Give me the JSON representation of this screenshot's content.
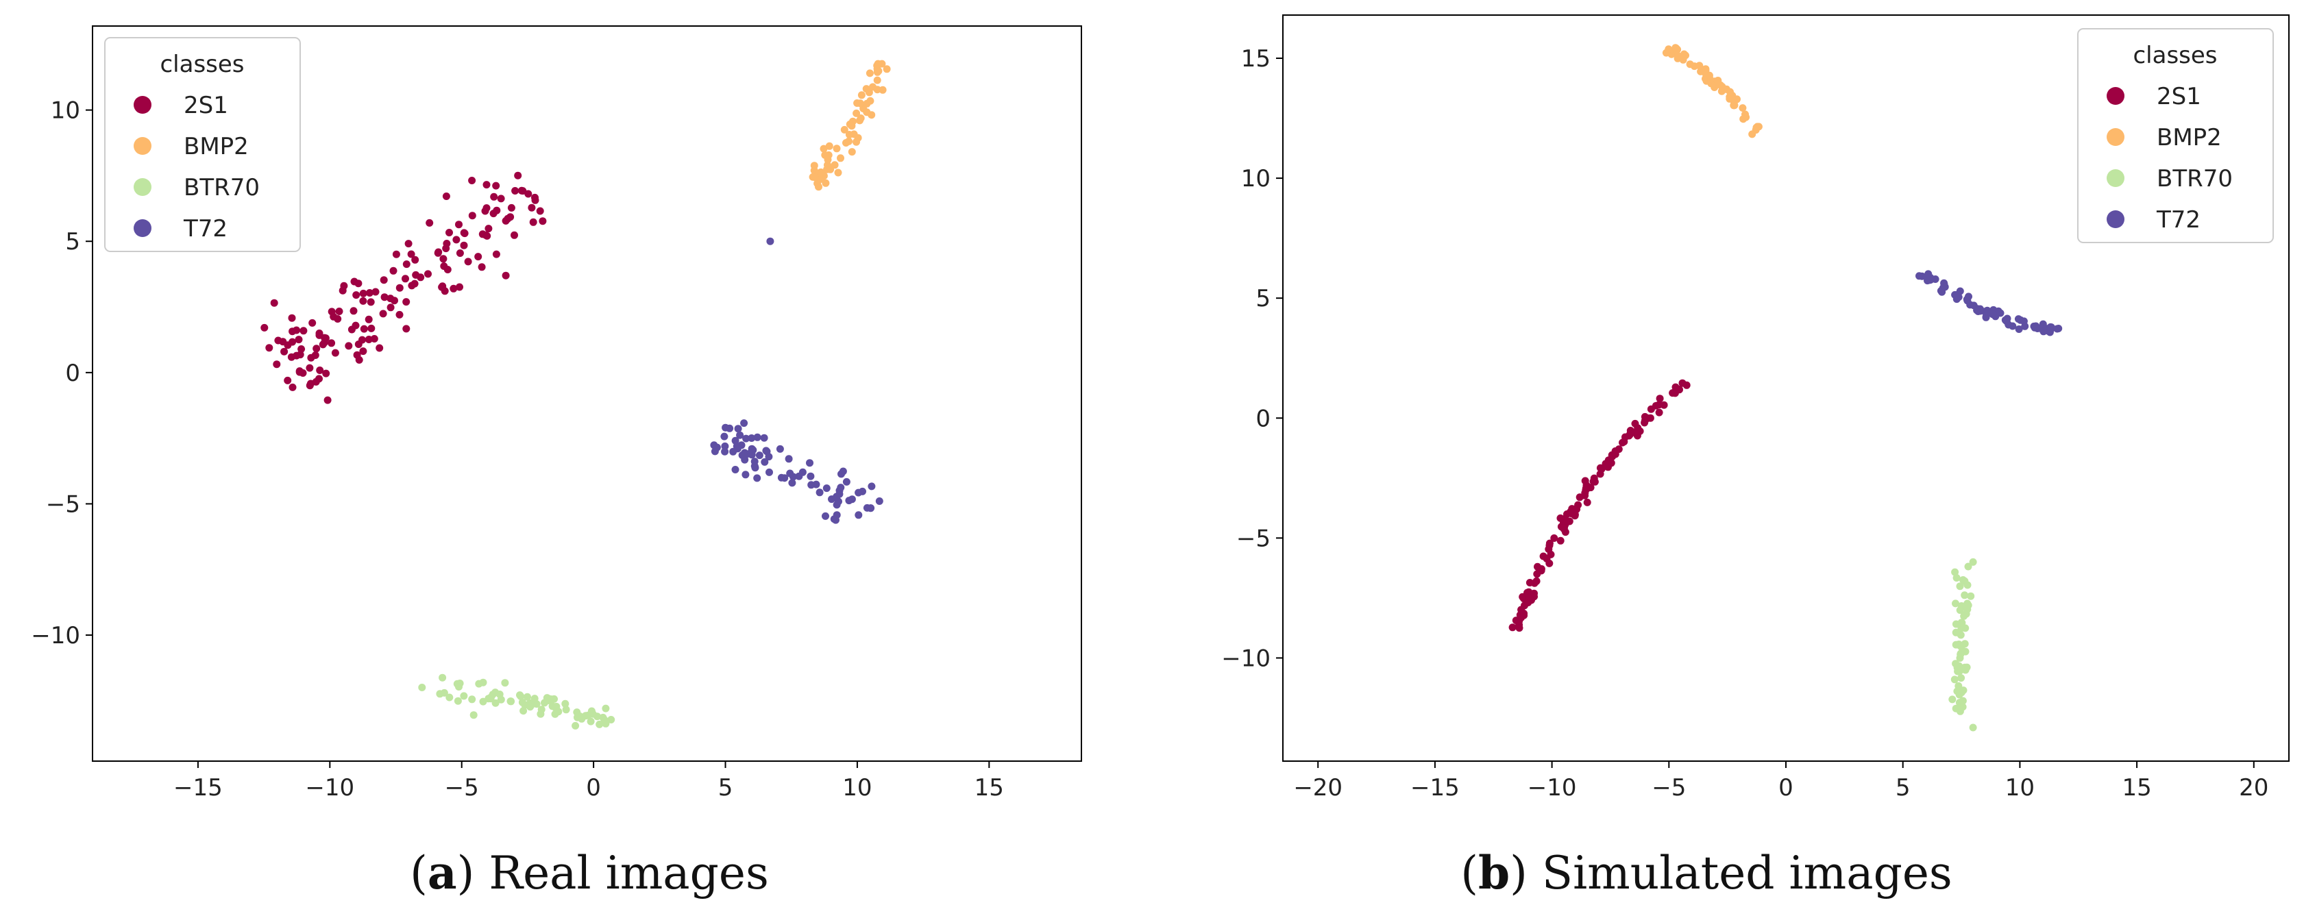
{
  "chart_data": [
    {
      "type": "scatter",
      "panel_letter": "a",
      "caption": "Real images",
      "xlim": [
        -19,
        18.5
      ],
      "ylim": [
        -14.8,
        13.2
      ],
      "xticks": [
        -15,
        -10,
        -5,
        0,
        5,
        10,
        15
      ],
      "yticks": [
        -10,
        -5,
        0,
        5,
        10
      ],
      "xtick_labels": [
        "−15",
        "−10",
        "−5",
        "0",
        "5",
        "10",
        "15"
      ],
      "ytick_labels": [
        "−10",
        "−5",
        "0",
        "5",
        "10"
      ],
      "legend": {
        "title": "classes",
        "placement": "top-left",
        "entries": [
          "2S1",
          "BMP2",
          "BTR70",
          "T72"
        ]
      },
      "series": [
        {
          "name": "2S1",
          "color": "#9e0142",
          "cluster": {
            "from": [
              -12,
              0.2
            ],
            "to": [
              -2.2,
              6.8
            ],
            "count": 150,
            "spread": 0.8
          }
        },
        {
          "name": "BMP2",
          "color": "#fdb96b",
          "cluster": {
            "from": [
              8.4,
              7.0
            ],
            "to": [
              11.2,
              11.8
            ],
            "count": 60,
            "spread": 0.3
          }
        },
        {
          "name": "BTR70",
          "color": "#bfe5a0",
          "cluster": {
            "from": [
              -6.5,
              -11.8
            ],
            "to": [
              0.7,
              -13.3
            ],
            "count": 70,
            "spread": 0.25
          }
        },
        {
          "name": "T72",
          "color": "#5e4fa2",
          "cluster": {
            "from": [
              4.5,
              -2.4
            ],
            "to": [
              10.7,
              -5.4
            ],
            "count": 80,
            "spread": 0.45
          },
          "extra_points": [
            [
              6.7,
              5.0
            ]
          ]
        }
      ]
    },
    {
      "type": "scatter",
      "panel_letter": "b",
      "caption": "Simulated images",
      "xlim": [
        -21.5,
        21.5
      ],
      "ylim": [
        -14.3,
        16.8
      ],
      "xticks": [
        -20,
        -15,
        -10,
        -5,
        0,
        5,
        10,
        15,
        20
      ],
      "yticks": [
        -10,
        -5,
        0,
        5,
        10,
        15
      ],
      "xtick_labels": [
        "−20",
        "−15",
        "−10",
        "−5",
        "0",
        "5",
        "10",
        "15",
        "20"
      ],
      "ytick_labels": [
        "−10",
        "−5",
        "0",
        "5",
        "10",
        "15"
      ],
      "legend": {
        "title": "classes",
        "placement": "top-right",
        "entries": [
          "2S1",
          "BMP2",
          "BTR70",
          "T72"
        ]
      },
      "series": [
        {
          "name": "2S1",
          "color": "#9e0142",
          "cluster": {
            "from": [
              -11.6,
              -9.0
            ],
            "to": [
              -4.3,
              1.5
            ],
            "count": 120,
            "spread": 0.12,
            "curve": 0.9
          }
        },
        {
          "name": "BMP2",
          "color": "#fdb96b",
          "cluster": {
            "from": [
              -5.0,
              15.4
            ],
            "to": [
              -1.2,
              11.9
            ],
            "count": 60,
            "spread": 0.12,
            "curve": 0.3
          }
        },
        {
          "name": "BTR70",
          "color": "#bfe5a0",
          "cluster": {
            "from": [
              7.4,
              -12.3
            ],
            "to": [
              7.6,
              -6.1
            ],
            "count": 60,
            "spread": 0.18,
            "curve": 0
          },
          "extra_points": [
            [
              8.0,
              -12.9
            ],
            [
              8.0,
              -6.0
            ]
          ]
        },
        {
          "name": "T72",
          "color": "#5e4fa2",
          "cluster": {
            "from": [
              5.7,
              6.1
            ],
            "to": [
              12.1,
              3.6
            ],
            "count": 70,
            "spread": 0.12,
            "curve": -0.5
          }
        }
      ]
    }
  ]
}
